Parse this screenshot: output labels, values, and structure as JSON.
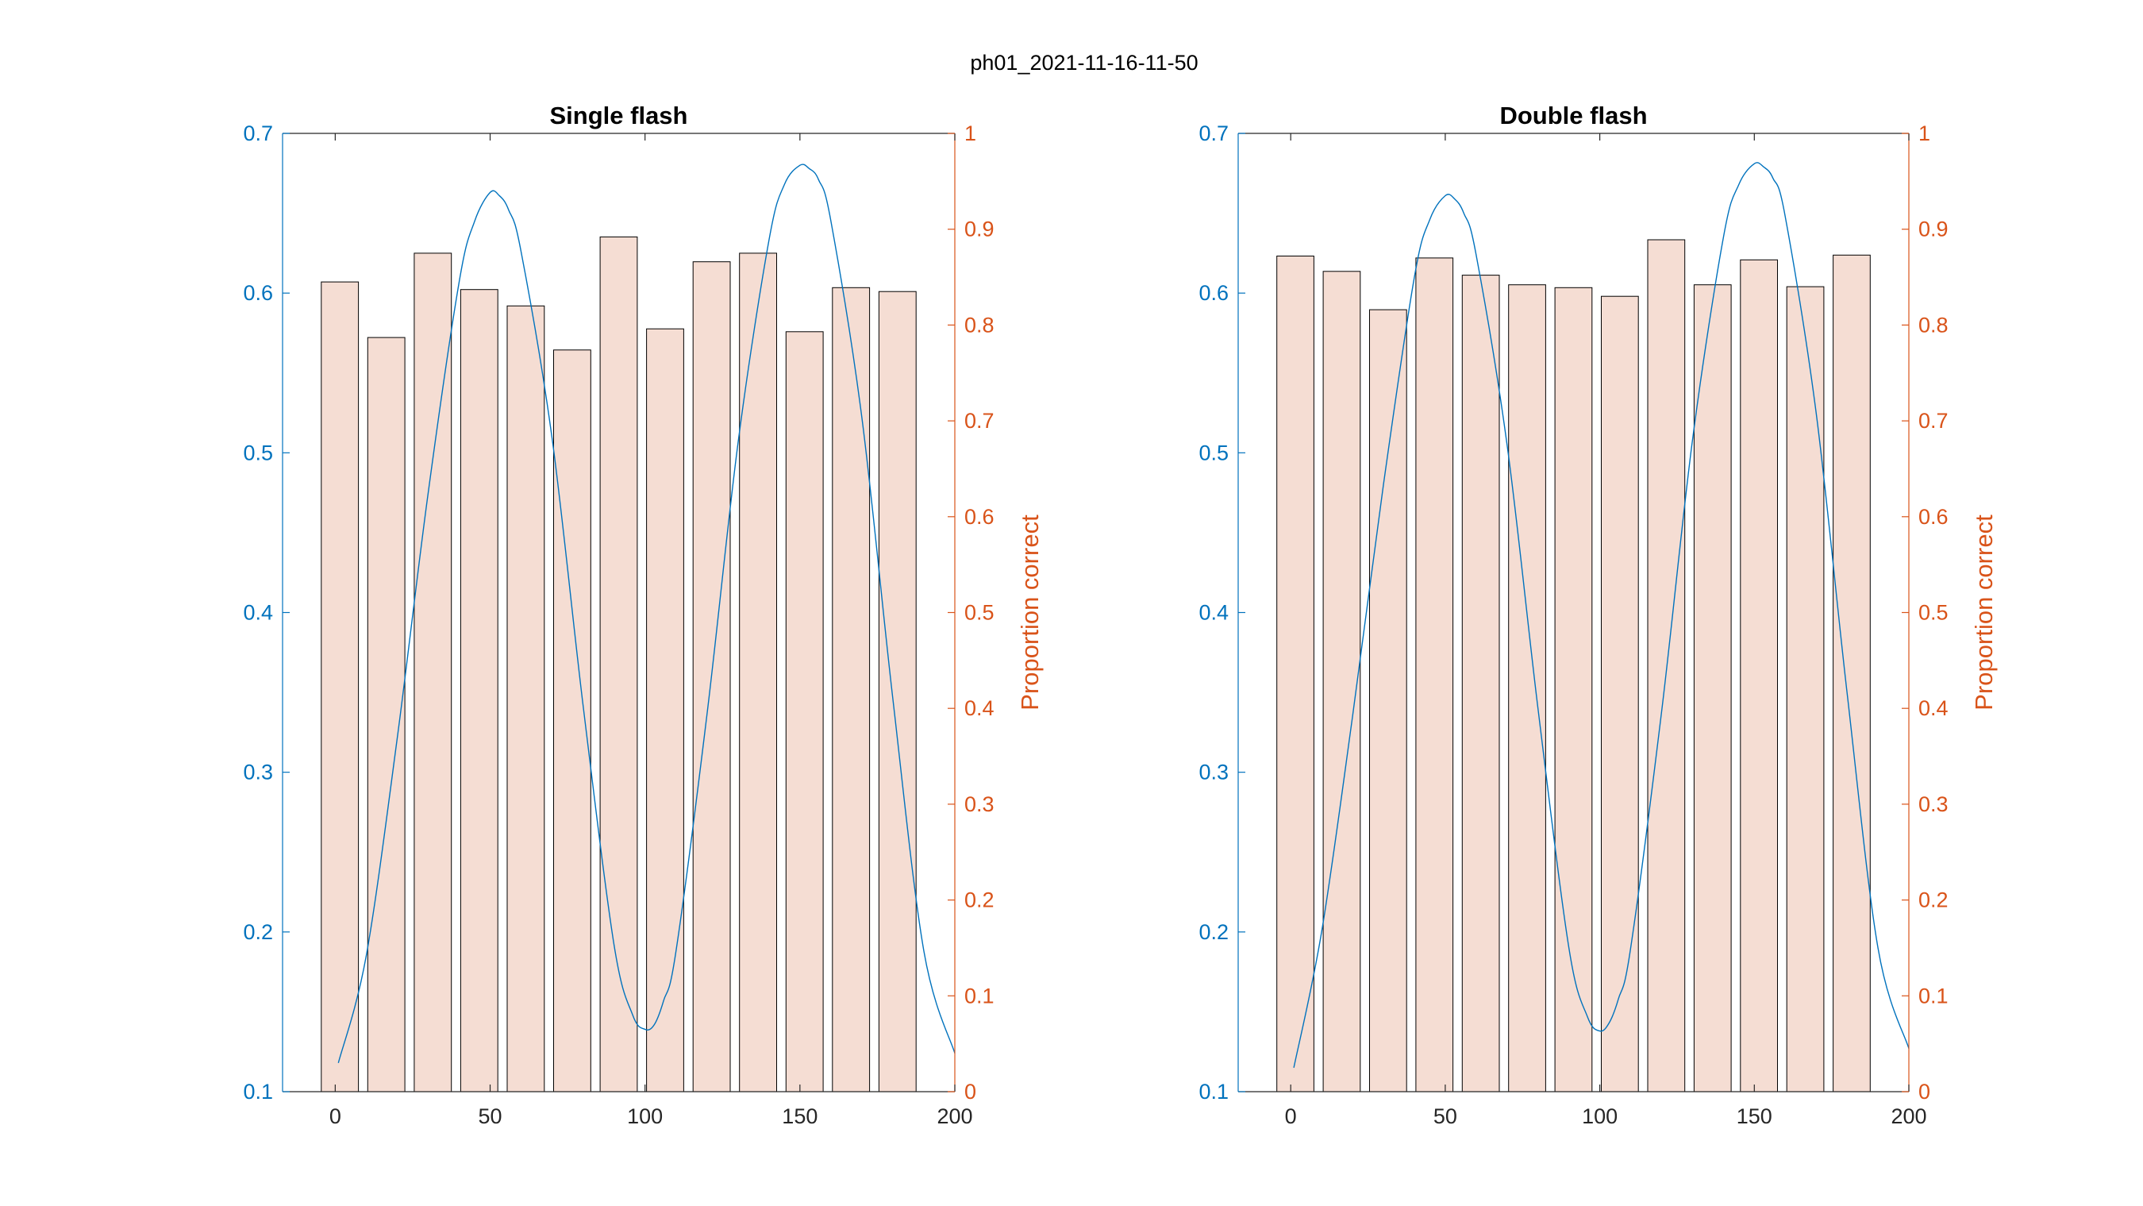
{
  "figure": {
    "suptitle": "ph01_2021-11-16-11-50"
  },
  "colors": {
    "left_axis": "#0072BD",
    "right_axis": "#D95319",
    "bar_fill": "#F5DDD3",
    "bar_edge": "#000000",
    "curve": "#0072BD"
  },
  "chart_data": [
    {
      "type": "bar",
      "title": "Single flash",
      "xlabel": "",
      "ylabel_left": "",
      "ylabel_right": "Proportion correct",
      "xlim": [
        -17,
        200
      ],
      "ylim_left": [
        0.1,
        0.7
      ],
      "ylim_right": [
        0,
        1
      ],
      "x_ticks": [
        "0",
        "50",
        "100",
        "150",
        "200"
      ],
      "y_left_ticks": [
        "0.1",
        "0.2",
        "0.3",
        "0.4",
        "0.5",
        "0.6",
        "0.7"
      ],
      "y_right_ticks": [
        "0",
        "0.1",
        "0.2",
        "0.3",
        "0.4",
        "0.5",
        "0.6",
        "0.7",
        "0.8",
        "0.9",
        "1"
      ],
      "bars": {
        "x": [
          1.5,
          16.5,
          31.5,
          46.5,
          61.5,
          76.5,
          91.5,
          106.5,
          121.5,
          136.5,
          151.5,
          166.5,
          181.5
        ],
        "width": 12,
        "values": [
          0.845,
          0.787,
          0.875,
          0.837,
          0.82,
          0.774,
          0.892,
          0.796,
          0.866,
          0.875,
          0.793,
          0.839,
          0.835
        ]
      },
      "curve": {
        "axis": "left",
        "x": [
          1,
          10,
          20,
          30,
          40,
          45,
          50,
          53,
          56,
          60,
          70,
          80,
          90,
          96,
          100,
          103,
          106,
          110,
          120,
          130,
          140,
          145,
          150,
          153,
          156,
          160,
          170,
          180,
          190,
          200
        ],
        "y": [
          0.118,
          0.185,
          0.321,
          0.475,
          0.607,
          0.645,
          0.663,
          0.661,
          0.652,
          0.626,
          0.509,
          0.342,
          0.192,
          0.148,
          0.139,
          0.142,
          0.157,
          0.188,
          0.336,
          0.506,
          0.633,
          0.668,
          0.68,
          0.678,
          0.671,
          0.645,
          0.522,
          0.346,
          0.188,
          0.124
        ]
      }
    },
    {
      "type": "bar",
      "title": "Double flash",
      "xlabel": "",
      "ylabel_left": "",
      "ylabel_right": "Proportion correct",
      "xlim": [
        -17,
        200
      ],
      "ylim_left": [
        0.1,
        0.7
      ],
      "ylim_right": [
        0,
        1
      ],
      "x_ticks": [
        "0",
        "50",
        "100",
        "150",
        "200"
      ],
      "y_left_ticks": [
        "0.1",
        "0.2",
        "0.3",
        "0.4",
        "0.5",
        "0.6",
        "0.7"
      ],
      "y_right_ticks": [
        "0",
        "0.1",
        "0.2",
        "0.3",
        "0.4",
        "0.5",
        "0.6",
        "0.7",
        "0.8",
        "0.9",
        "1"
      ],
      "bars": {
        "x": [
          1.5,
          16.5,
          31.5,
          46.5,
          61.5,
          76.5,
          91.5,
          106.5,
          121.5,
          136.5,
          151.5,
          166.5,
          181.5
        ],
        "width": 12,
        "values": [
          0.872,
          0.856,
          0.816,
          0.87,
          0.852,
          0.842,
          0.839,
          0.83,
          0.889,
          0.842,
          0.868,
          0.84,
          0.873
        ]
      },
      "curve": {
        "axis": "left",
        "x": [
          1,
          10,
          20,
          30,
          40,
          45,
          50,
          53,
          56,
          60,
          70,
          80,
          90,
          96,
          100,
          103,
          106,
          110,
          120,
          130,
          140,
          145,
          150,
          153,
          156,
          160,
          170,
          180,
          190,
          200
        ],
        "y": [
          0.115,
          0.2,
          0.335,
          0.48,
          0.61,
          0.646,
          0.661,
          0.659,
          0.65,
          0.624,
          0.505,
          0.34,
          0.19,
          0.147,
          0.138,
          0.143,
          0.158,
          0.19,
          0.338,
          0.508,
          0.635,
          0.668,
          0.681,
          0.679,
          0.672,
          0.648,
          0.525,
          0.35,
          0.19,
          0.127
        ]
      }
    }
  ]
}
